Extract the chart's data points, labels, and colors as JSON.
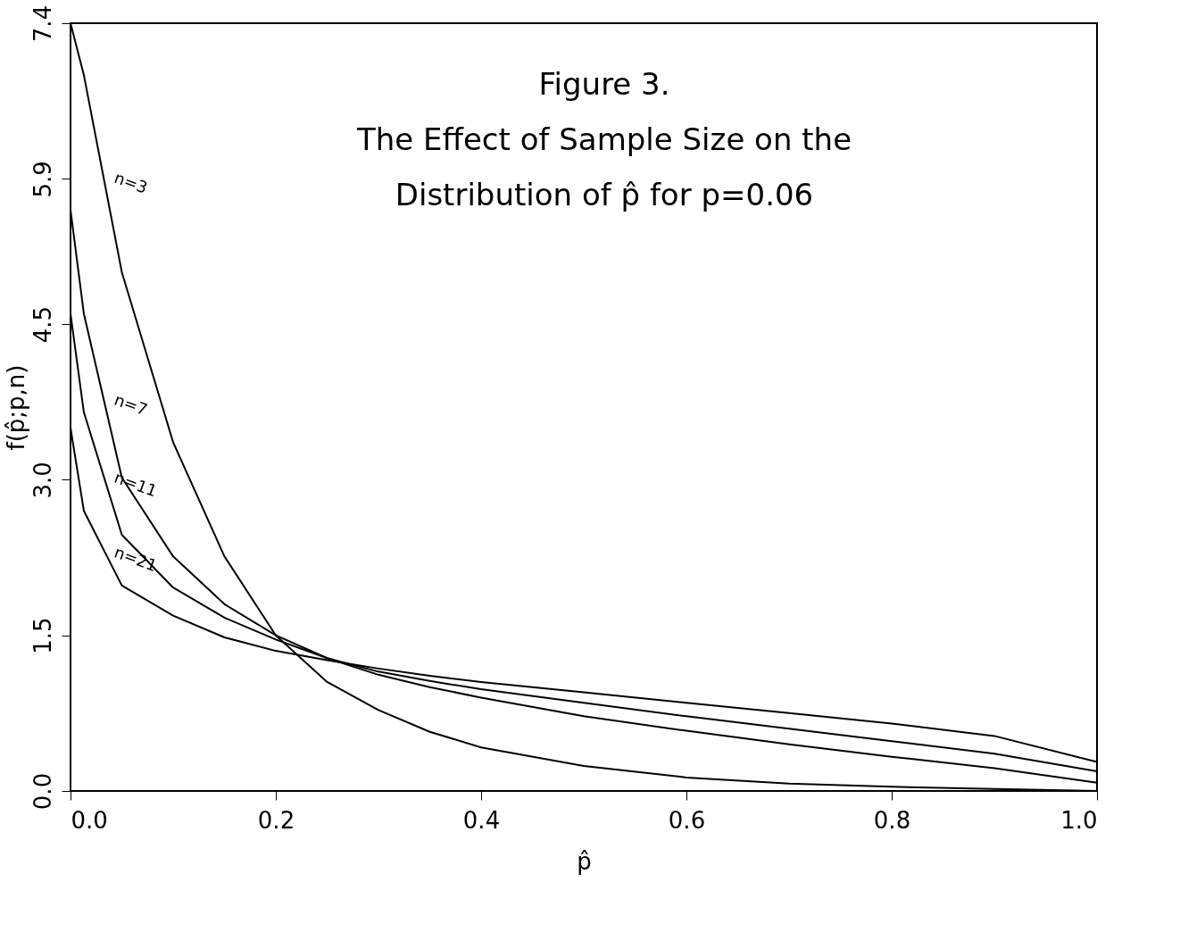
{
  "chart_data": {
    "type": "line",
    "title": "Figure 3.",
    "subtitle": "The Effect of Sample Size on the\nDistribution of p̂ for p=0.06",
    "xlabel": "p̂",
    "ylabel": "f(p̂;p,n)",
    "xlim": [
      0,
      1
    ],
    "ylim": [
      0,
      7.4
    ],
    "xticks": [
      {
        "value": 0,
        "label": "0.0"
      },
      0.2,
      0.4,
      0.6,
      0.8,
      {
        "value": 1,
        "label": "1.0"
      }
    ],
    "yticks": [
      {
        "value": 0,
        "label": "0.0"
      },
      1.5,
      {
        "value": 3,
        "label": "3.0"
      },
      4.5,
      5.9,
      7.4
    ],
    "grid": false,
    "legend": false,
    "marker": "none",
    "line_style": "solid",
    "x": [
      0,
      0.013,
      0.05,
      0.1,
      0.15,
      0.2,
      0.25,
      0.3,
      0.35,
      0.4,
      0.5,
      0.6,
      0.7,
      0.8,
      0.9,
      1.0
    ],
    "series": [
      {
        "name": "n=3",
        "color": "#000000",
        "values": [
          7.4,
          6.9,
          5.0,
          3.36,
          2.26,
          1.5,
          1.05,
          0.78,
          0.57,
          0.42,
          0.24,
          0.13,
          0.07,
          0.04,
          0.02,
          0.0
        ]
      },
      {
        "name": "n=7",
        "color": "#000000",
        "values": [
          5.6,
          4.6,
          3.02,
          2.26,
          1.8,
          1.5,
          1.28,
          1.12,
          1.0,
          0.9,
          0.72,
          0.58,
          0.45,
          0.33,
          0.22,
          0.08
        ]
      },
      {
        "name": "n=11",
        "color": "#000000",
        "values": [
          4.6,
          3.65,
          2.47,
          1.96,
          1.67,
          1.46,
          1.28,
          1.15,
          1.06,
          0.98,
          0.85,
          0.72,
          0.6,
          0.48,
          0.36,
          0.19
        ]
      },
      {
        "name": "n=21",
        "color": "#000000",
        "values": [
          3.5,
          2.7,
          1.98,
          1.69,
          1.48,
          1.35,
          1.26,
          1.18,
          1.11,
          1.05,
          0.95,
          0.85,
          0.75,
          0.65,
          0.53,
          0.28
        ]
      }
    ]
  }
}
